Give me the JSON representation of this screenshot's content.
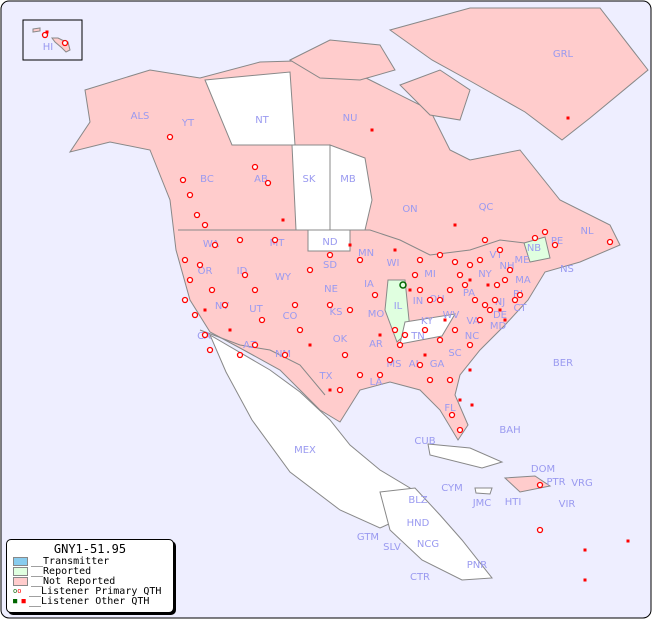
{
  "legend": {
    "title": "GNY1-51.95",
    "items": [
      {
        "label": "__Transmitter",
        "color": "#88ccee"
      },
      {
        "label": "__Reported",
        "color": "#e0ffe0"
      },
      {
        "label": "__Not Reported",
        "color": "#ffcccc"
      },
      {
        "label": "__Listener Primary QTH",
        "color": "#ff0000"
      },
      {
        "label": "__Listener Other QTH",
        "color": "#ff0000"
      }
    ]
  },
  "colors": {
    "ocean": "#eeeeff",
    "not_reported": "#ffcccc",
    "reported": "#e0ffe0",
    "no_data": "#ffffff",
    "label": "#9a9af0",
    "marker": "#ff0000"
  },
  "regions": {
    "reported": [
      "IL",
      "NB"
    ],
    "unlisted": [
      "NT",
      "SK",
      "MB",
      "ND",
      "KY",
      "MEX",
      "CUB",
      "BLZ",
      "HND",
      "GTM",
      "SLV",
      "NCG",
      "CTR",
      "PNR",
      "JMC",
      "HTI",
      "BAH",
      "CYM"
    ]
  },
  "labels": [
    "HI",
    "ALS",
    "YT",
    "NT",
    "NU",
    "GRL",
    "BC",
    "AB",
    "SK",
    "MB",
    "ON",
    "QC",
    "NL",
    "NS",
    "NB",
    "PE",
    "WA",
    "OR",
    "ID",
    "MT",
    "WY",
    "NV",
    "UT",
    "CO",
    "CA",
    "AZ",
    "NM",
    "ND",
    "SD",
    "NE",
    "KS",
    "OK",
    "TX",
    "MN",
    "IA",
    "MO",
    "AR",
    "LA",
    "WI",
    "IL",
    "MI",
    "IN",
    "OH",
    "KY",
    "TN",
    "MS",
    "AL",
    "GA",
    "FL",
    "SC",
    "NC",
    "VA",
    "WV",
    "PA",
    "NY",
    "VT",
    "NH",
    "ME",
    "MA",
    "CT",
    "RI",
    "NJ",
    "DE",
    "MD",
    "BER",
    "BAH",
    "CUB",
    "MEX",
    "CYM",
    "JMC",
    "HTI",
    "DOM",
    "PTR",
    "VRG",
    "VIR",
    "BLZ",
    "HND",
    "GTM",
    "SLV",
    "NCG",
    "CTR",
    "PNR"
  ]
}
